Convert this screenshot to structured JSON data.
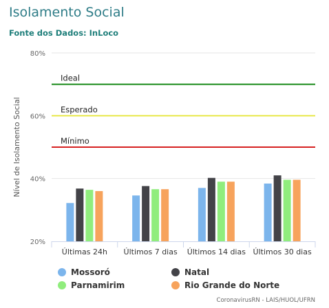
{
  "header": {
    "title": "Isolamento Social",
    "subtitle": "Fonte dos Dados: InLoco"
  },
  "chart_data": {
    "type": "bar",
    "title": "Isolamento Social",
    "subtitle": "Fonte dos Dados: InLoco",
    "ylabel": "Nível de Isolamento Social",
    "xlabel": "",
    "ylim": [
      20,
      80
    ],
    "yticks": [
      20,
      40,
      60,
      80
    ],
    "ytick_labels": [
      "20%",
      "40%",
      "60%",
      "80%"
    ],
    "grid": "horizontal",
    "legend_position": "bottom",
    "categories": [
      "Últimas 24h",
      "Últimos 7 dias",
      "Últimos 14 dias",
      "Últimos 30 dias"
    ],
    "series": [
      {
        "name": "Mossoró",
        "color": "#7cb5ec",
        "values": [
          32.2,
          34.6,
          37.0,
          38.4
        ]
      },
      {
        "name": "Natal",
        "color": "#434348",
        "values": [
          36.8,
          37.6,
          40.2,
          41.0
        ]
      },
      {
        "name": "Parnamirim",
        "color": "#90ed7d",
        "values": [
          36.4,
          36.6,
          39.0,
          39.6
        ]
      },
      {
        "name": "Rio Grande do Norte",
        "color": "#f7a35c",
        "values": [
          36.0,
          36.6,
          39.0,
          39.6
        ]
      }
    ],
    "reference_lines": [
      {
        "label": "Ideal",
        "value": 70,
        "color": "#1a8a1a"
      },
      {
        "label": "Esperado",
        "value": 60,
        "color": "#e8e84a"
      },
      {
        "label": "Mínimo",
        "value": 50,
        "color": "#d62020"
      }
    ]
  },
  "footer": {
    "credit": "CoronavirusRN - LAIS/HUOL/UFRN"
  }
}
